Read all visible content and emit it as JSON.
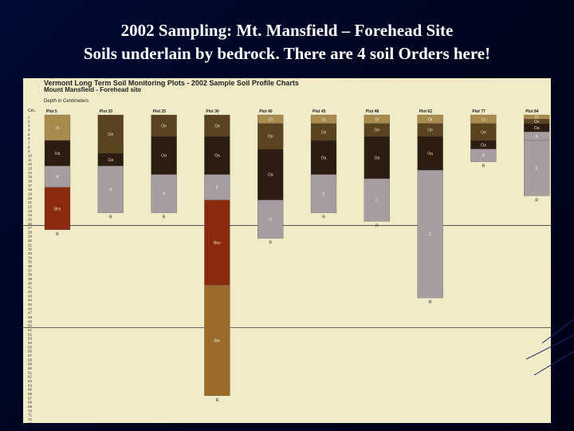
{
  "slide": {
    "title_line1": "2002 Sampling: Mt. Mansfield – Forehead Site",
    "title_line2": "Soils underlain by bedrock. There are 4 soil Orders here!"
  },
  "chart_data": {
    "type": "stacked-column",
    "title": "Vermont Long Term Soil Monitoring Plots - 2002 Sample Soil Profile Charts",
    "subtitle": "Mount Mansfield - Forehead site",
    "ylabel": "Depth in Centimeters",
    "y_header": "Cm.",
    "ylim": [
      0,
      75
    ],
    "y_ticks": [
      "1",
      "2",
      "3",
      "4",
      "5",
      "6",
      "7",
      "8",
      "9",
      "10",
      "11",
      "12",
      "13",
      "14",
      "15",
      "16",
      "17",
      "18",
      "19",
      "20",
      "21",
      "22",
      "23",
      "24",
      "25",
      "26",
      "27",
      "28",
      "29",
      "30",
      "31",
      "32",
      "33",
      "34",
      "35",
      "36",
      "37",
      "38",
      "39",
      "40",
      "41",
      "42",
      "43",
      "44",
      "45",
      "46",
      "47",
      "48",
      "49",
      "50",
      "51",
      "52",
      "53",
      "54",
      "55",
      "56",
      "57",
      "58",
      "59",
      "60",
      "61",
      "62",
      "63",
      "64",
      "65",
      "66",
      "67",
      "68",
      "69",
      "70",
      "71",
      "72",
      "73",
      "74",
      "75"
    ],
    "reference_lines": [
      26,
      50
    ],
    "horizon_colors": {
      "Oi": "#a88a4c",
      "Oe": "#5a4320",
      "Oa": "#2b1d10",
      "R": "#a59da1",
      "E": "#a59da1",
      "C": "#a59da1",
      "Bhs": "#8a2a0e",
      "Bw": "#9b6b2a"
    },
    "plots": [
      {
        "name": "Plot 5",
        "horizons": [
          {
            "label": "Oi",
            "top": 0,
            "bottom": 6
          },
          {
            "label": "Oa",
            "top": 6,
            "bottom": 12
          },
          {
            "label": "R",
            "top": 12,
            "bottom": 17
          },
          {
            "label": "Bhs",
            "top": 17,
            "bottom": 27
          }
        ],
        "bottom_label": "R"
      },
      {
        "name": "Plot 20",
        "horizons": [
          {
            "label": "Oe",
            "top": 0,
            "bottom": 9
          },
          {
            "label": "Oa",
            "top": 9,
            "bottom": 12
          },
          {
            "label": "R",
            "top": 12,
            "bottom": 23
          }
        ],
        "bottom_label": "R"
      },
      {
        "name": "Plot 25",
        "horizons": [
          {
            "label": "Oe",
            "top": 0,
            "bottom": 5
          },
          {
            "label": "Oa",
            "top": 5,
            "bottom": 14
          },
          {
            "label": "R",
            "top": 14,
            "bottom": 23
          }
        ],
        "bottom_label": "R"
      },
      {
        "name": "Plot 30",
        "horizons": [
          {
            "label": "Oe",
            "top": 0,
            "bottom": 5
          },
          {
            "label": "Oa",
            "top": 5,
            "bottom": 14
          },
          {
            "label": "E",
            "top": 14,
            "bottom": 20
          },
          {
            "label": "Bhs",
            "top": 20,
            "bottom": 40
          },
          {
            "label": "Bw",
            "top": 40,
            "bottom": 66
          }
        ],
        "bottom_label": "R"
      },
      {
        "name": "Plot 40",
        "horizons": [
          {
            "label": "Oi",
            "top": 0,
            "bottom": 2
          },
          {
            "label": "Oe",
            "top": 2,
            "bottom": 8
          },
          {
            "label": "Oa",
            "top": 8,
            "bottom": 20
          },
          {
            "label": "R",
            "top": 20,
            "bottom": 29
          }
        ],
        "bottom_label": "R"
      },
      {
        "name": "Plot 45",
        "horizons": [
          {
            "label": "Oi",
            "top": 0,
            "bottom": 2
          },
          {
            "label": "Oe",
            "top": 2,
            "bottom": 6
          },
          {
            "label": "Oa",
            "top": 6,
            "bottom": 14
          },
          {
            "label": "E",
            "top": 14,
            "bottom": 23
          }
        ],
        "bottom_label": "R"
      },
      {
        "name": "Plot 48",
        "horizons": [
          {
            "label": "Oi",
            "top": 0,
            "bottom": 2
          },
          {
            "label": "Oe",
            "top": 2,
            "bottom": 5
          },
          {
            "label": "Oa",
            "top": 5,
            "bottom": 15
          },
          {
            "label": "C",
            "top": 15,
            "bottom": 25
          }
        ],
        "bottom_label": "R"
      },
      {
        "name": "Plot 62",
        "horizons": [
          {
            "label": "Oi",
            "top": 0,
            "bottom": 2
          },
          {
            "label": "Oe",
            "top": 2,
            "bottom": 5
          },
          {
            "label": "Oa",
            "top": 5,
            "bottom": 13
          },
          {
            "label": "C",
            "top": 13,
            "bottom": 43
          }
        ],
        "bottom_label": "R"
      },
      {
        "name": "Plot 77",
        "horizons": [
          {
            "label": "Oi",
            "top": 0,
            "bottom": 2
          },
          {
            "label": "Oe",
            "top": 2,
            "bottom": 6
          },
          {
            "label": "Oa",
            "top": 6,
            "bottom": 8
          },
          {
            "label": "R",
            "top": 8,
            "bottom": 11
          }
        ],
        "bottom_label": "R"
      },
      {
        "name": "Plot 84",
        "horizons": [
          {
            "label": "Oi",
            "top": 0,
            "bottom": 1
          },
          {
            "label": "Oe",
            "top": 1,
            "bottom": 2
          },
          {
            "label": "Oa",
            "top": 2,
            "bottom": 4
          },
          {
            "label": "A",
            "top": 4,
            "bottom": 6
          },
          {
            "label": "E",
            "top": 6,
            "bottom": 19
          }
        ],
        "bottom_label": "R"
      }
    ]
  }
}
